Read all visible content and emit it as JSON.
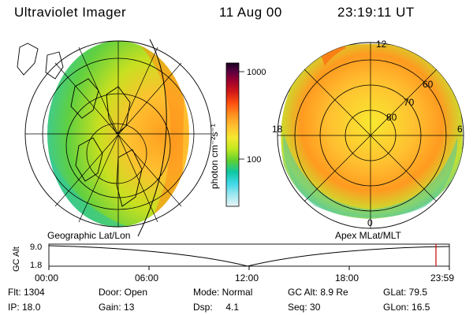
{
  "header": {
    "title": "Ultraviolet Imager",
    "date": "11 Aug 00",
    "time": "23:19:11 UT"
  },
  "colorbar": {
    "unit_label": "photon cm⁻²s⁻¹",
    "ticks": [
      "1000",
      "100"
    ],
    "colors": [
      "#1a0020",
      "#5a0040",
      "#9a0030",
      "#d01818",
      "#ff5010",
      "#ff9020",
      "#ffc030",
      "#f5e830",
      "#c0e820",
      "#60d030",
      "#10c8a0",
      "#40d8e8",
      "#a0e8f0",
      "#e8f4f8"
    ]
  },
  "left_map": {
    "caption": "Geographic Lat/Lon"
  },
  "right_map": {
    "caption": "Apex MLat/MLT",
    "clock_labels": {
      "top": "12",
      "left": "18",
      "right": "6",
      "bottom": "0"
    },
    "lat_labels": [
      "60",
      "70",
      "80"
    ]
  },
  "altitude_plot": {
    "ylabel": "GC Alt",
    "ytick_top": "9.0",
    "ytick_bottom": "1.8",
    "xticks": [
      "00:00",
      "06:00",
      "12:00",
      "18:00",
      "23:59"
    ],
    "current_marker_color": "#cc0000"
  },
  "status": {
    "row1": {
      "flt": "Flt: 1304",
      "door": "Door: Open",
      "mode": "Mode: Normal",
      "gcalt": "GC Alt: 8.9 Re",
      "glat": "GLat: 79.5"
    },
    "row2": {
      "ip": "IP: 18.0",
      "gain": "Gain: 13",
      "dsp": "Dsp:     4.1",
      "seq": "Seq: 30",
      "glon": "GLon: 16.5"
    }
  }
}
